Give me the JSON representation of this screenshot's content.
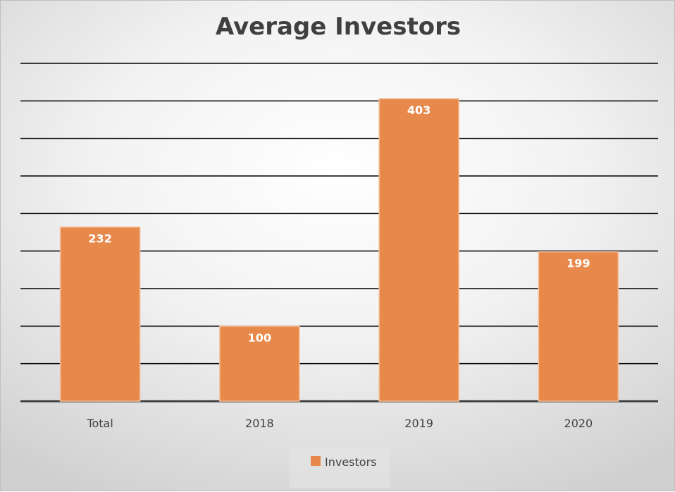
{
  "chart_data": {
    "type": "bar",
    "title": "Average Investors",
    "categories": [
      "Total",
      "2018",
      "2019",
      "2020"
    ],
    "series": [
      {
        "name": "Investors",
        "values": [
          232,
          100,
          403,
          199
        ],
        "color": "#E8894C"
      }
    ],
    "data_labels": [
      "232",
      "100",
      "403",
      "199"
    ],
    "ylim": [
      0,
      450
    ],
    "gridlines": true,
    "y_axis_labels_visible": false,
    "legend_position": "bottom"
  },
  "colors": {
    "bar_fill": "#E8894C",
    "bar_stroke": "#F4C3A1",
    "gridline": "#000000",
    "text": "#404040",
    "data_label": "#FFFFFF"
  }
}
